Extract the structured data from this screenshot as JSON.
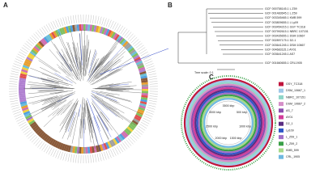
{
  "panels": {
    "a": "A",
    "b": "B",
    "c": "C"
  },
  "tree_b": {
    "leaves": [
      "GCF 000758145.1 L Z59",
      "GCF 001483645.1 L Z59",
      "GCF 003345465.1 KMB 599",
      "GCF 003809655.1 L Ly09",
      "GCF 003454215.1 GSY TC318",
      "GCF 007992615.1 NBRC 107151",
      "GCF 003435655.1 DSM 10667",
      "GCF 002897175.1 D2-1",
      "GCF 003641245.1 DSM 10667",
      "GCF 004683115.1 AY01",
      "GCF 003641245.1 AS7",
      "GCF 001660655.1 CRL1905"
    ],
    "scale": "Tree scale: 0.1"
  },
  "ring_c": {
    "ticks": [
      "3500 kbp",
      "500 kbp",
      "1000 kbp",
      "1500 kbp",
      "2000 kbp",
      "2500 kbp",
      "3000 kbp"
    ],
    "legend": [
      {
        "name": "GSY_TC318",
        "color": "#c0143c"
      },
      {
        "name": "DSM_10667_1",
        "color": "#9fc8e8"
      },
      {
        "name": "NBRC_107151",
        "color": "#8fd6c8"
      },
      {
        "name": "DSM_10667_2",
        "color": "#d58fc8"
      },
      {
        "name": "AS_7",
        "color": "#8c4fb0"
      },
      {
        "name": "AY01",
        "color": "#d23c9a"
      },
      {
        "name": "D2_1",
        "color": "#5a2d82"
      },
      {
        "name": "Ly109",
        "color": "#2e58c8"
      },
      {
        "name": "L_Z59_1",
        "color": "#a070c8"
      },
      {
        "name": "L_Z59_2",
        "color": "#3aa048"
      },
      {
        "name": "KMB_599",
        "color": "#a6d98a"
      },
      {
        "name": "CRL_1905",
        "color": "#6fb8e0"
      }
    ]
  }
}
